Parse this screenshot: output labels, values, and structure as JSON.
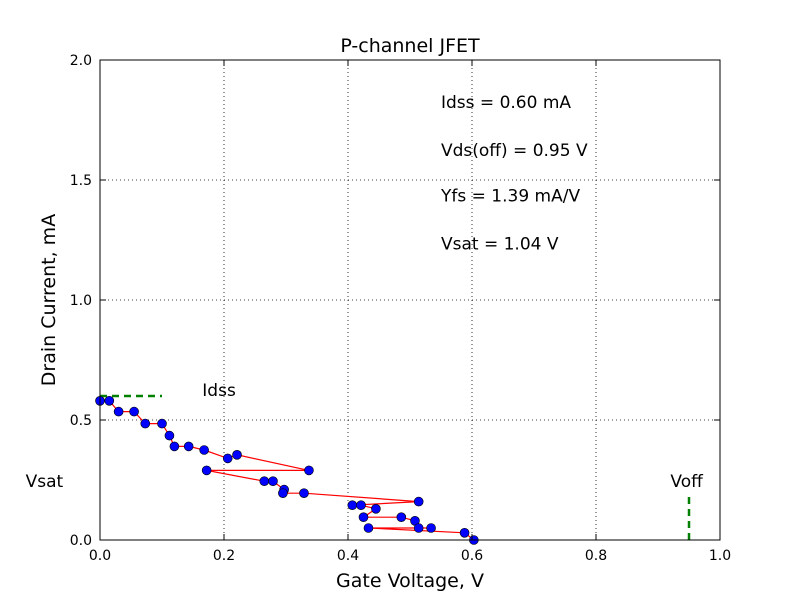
{
  "chart_data": {
    "type": "scatter",
    "title": "P-channel JFET",
    "xlabel": "Gate Voltage, V",
    "ylabel": "Drain Current, mA",
    "xlim": [
      0.0,
      1.0
    ],
    "ylim": [
      0.0,
      2.0
    ],
    "grid": true,
    "x_ticks": [
      "0.0",
      "0.2",
      "0.4",
      "0.6",
      "0.8",
      "1.0"
    ],
    "y_ticks": [
      "0.0",
      "0.5",
      "1.0",
      "1.5",
      "2.0"
    ],
    "series": [
      {
        "marker_color": "#0000ff",
        "line_color": "#ff0000",
        "points": [
          [
            0.0,
            0.58
          ],
          [
            0.015,
            0.58
          ],
          [
            0.03,
            0.535
          ],
          [
            0.055,
            0.535
          ],
          [
            0.073,
            0.485
          ],
          [
            0.1,
            0.485
          ],
          [
            0.112,
            0.435
          ],
          [
            0.12,
            0.39
          ],
          [
            0.143,
            0.39
          ],
          [
            0.168,
            0.375
          ],
          [
            0.206,
            0.34
          ],
          [
            0.221,
            0.355
          ],
          [
            0.337,
            0.29
          ],
          [
            0.172,
            0.29
          ],
          [
            0.265,
            0.245
          ],
          [
            0.279,
            0.245
          ],
          [
            0.297,
            0.21
          ],
          [
            0.295,
            0.195
          ],
          [
            0.329,
            0.195
          ],
          [
            0.514,
            0.16
          ],
          [
            0.407,
            0.145
          ],
          [
            0.421,
            0.145
          ],
          [
            0.445,
            0.13
          ],
          [
            0.425,
            0.095
          ],
          [
            0.486,
            0.095
          ],
          [
            0.508,
            0.08
          ],
          [
            0.514,
            0.05
          ],
          [
            0.534,
            0.05
          ],
          [
            0.433,
            0.05
          ],
          [
            0.588,
            0.03
          ],
          [
            0.603,
            0.0
          ]
        ]
      }
    ],
    "reference_lines": [
      {
        "label": "Idss",
        "orientation": "horizontal",
        "value": 0.6,
        "from": 0.0,
        "to": 0.1,
        "color": "#008000"
      },
      {
        "label": "Voff",
        "orientation": "vertical",
        "value": 0.95,
        "from": 0.0,
        "to": 0.2,
        "color": "#008000"
      }
    ],
    "annotations": [
      {
        "text": "Idss",
        "x": 0.165,
        "y": 0.6
      },
      {
        "text": "Voff",
        "x": 0.92,
        "y": 0.22
      },
      {
        "text": "Vsat",
        "x": -0.12,
        "y": 0.22
      },
      {
        "text": "Idss = 0.60 mA",
        "x": 0.55,
        "y": 1.8
      },
      {
        "text": "Vds(off) = 0.95 V",
        "x": 0.55,
        "y": 1.6
      },
      {
        "text": "Yfs = 1.39 mA/V",
        "x": 0.55,
        "y": 1.41
      },
      {
        "text": "Vsat = 1.04 V",
        "x": 0.55,
        "y": 1.21
      }
    ]
  }
}
